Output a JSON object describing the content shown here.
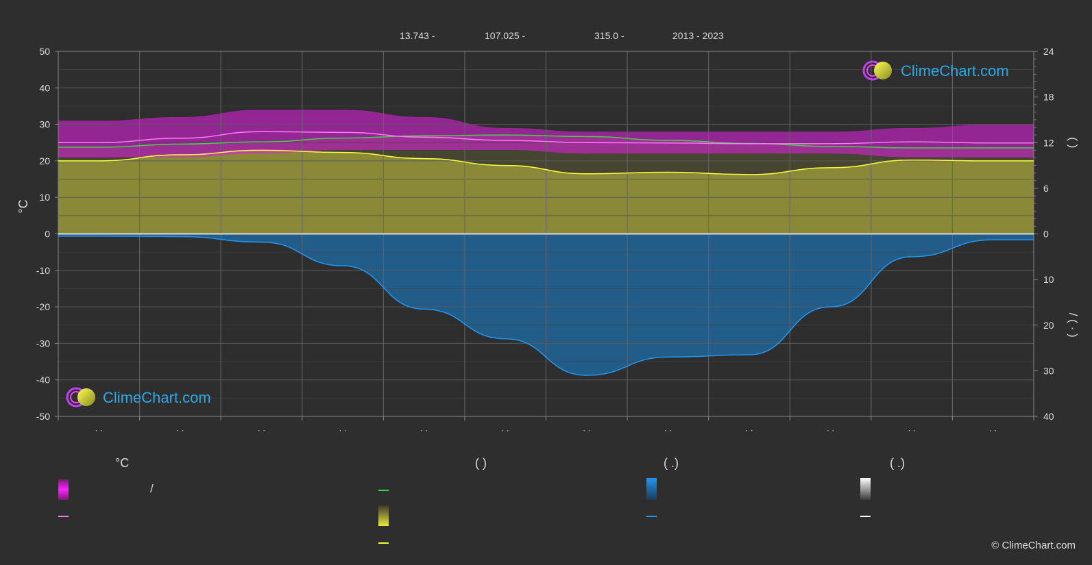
{
  "header": {
    "lat": "13.743 -",
    "lon": "107.025 -",
    "elev": "315.0 -",
    "years": "2013 - 2023"
  },
  "logo_text": "ClimeChart.com",
  "copyright": "© ClimeChart.com",
  "left_axis_unit": "°C",
  "right_axis_marks_top": "(   )",
  "right_axis_marks_bottom": "/   (  ·  )",
  "legend": {
    "col1_head": "°C",
    "col1_slash": "/",
    "col2_head": "(          )",
    "col3_head": "(   .)",
    "col4_head": "(   .)"
  },
  "colors": {
    "background": "#2e2e2e",
    "temp_band": "#d822d8",
    "avg_temp": "#ff7aff",
    "daylight": "#42d442",
    "sunshine_fill": "#b8b83a",
    "sunshine_line": "#ffff40",
    "precip_fill": "#1f6ea8",
    "precip_line": "#2196f3",
    "grid": "#5a5a5a",
    "zero_line": "#dddddd"
  },
  "chart_data": {
    "type": "area",
    "months": 12,
    "month_labels": [
      "· ·",
      "· ·",
      "· ·",
      "· ·",
      "· ·",
      "· ·",
      "· ·",
      "· ·",
      "· ·",
      "· ·",
      "· ·",
      "· ·"
    ],
    "y_left": {
      "ticks": [
        50,
        40,
        30,
        20,
        10,
        0,
        -10,
        -20,
        -30,
        -40,
        -50
      ],
      "range": [
        -50,
        50
      ],
      "unit": "°C"
    },
    "y_right_top": {
      "ticks": [
        24,
        18,
        12,
        6,
        0
      ],
      "range": [
        0,
        24
      ]
    },
    "y_right_bottom": {
      "ticks": [
        0,
        10,
        20,
        30,
        40
      ],
      "range": [
        0,
        40
      ]
    },
    "temp_max_band": [
      31,
      32,
      34,
      34,
      32,
      29,
      28,
      28,
      28,
      28,
      29,
      30
    ],
    "temp_min_band": [
      21,
      21,
      22,
      23,
      23,
      23,
      22,
      22,
      22,
      22,
      21,
      21
    ],
    "avg_temp": [
      25.0,
      26.2,
      28.0,
      27.8,
      26.5,
      25.6,
      25.0,
      24.9,
      24.7,
      24.7,
      25.2,
      24.9
    ],
    "daylight_hours": [
      11.4,
      11.8,
      12.1,
      12.6,
      12.9,
      13.0,
      12.8,
      12.3,
      11.9,
      11.5,
      11.3,
      11.3
    ],
    "sunshine_hours": [
      9.6,
      10.4,
      11.0,
      10.7,
      9.9,
      9.0,
      7.9,
      8.1,
      7.8,
      8.7,
      9.7,
      9.6
    ],
    "precip_mm": [
      0.5,
      0.6,
      1.8,
      7.0,
      16.5,
      23.0,
      31.0,
      27.0,
      26.5,
      16.0,
      5.0,
      1.3
    ]
  }
}
